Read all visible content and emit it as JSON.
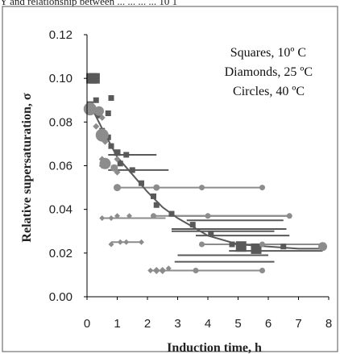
{
  "page": {
    "top_text": "Y and relationship between ... ... ... ... 10 1"
  },
  "chart_data": {
    "type": "scatter",
    "title": "",
    "xlabel": "Induction time, h",
    "ylabel": "Relative supersaturation, σ",
    "xlim": [
      0,
      8
    ],
    "ylim": [
      0.0,
      0.12
    ],
    "x_ticks": [
      "0",
      "1",
      "2",
      "3",
      "4",
      "5",
      "6",
      "7",
      "8"
    ],
    "y_ticks": [
      "0.00",
      "0.02",
      "0.04",
      "0.06",
      "0.08",
      "0.10",
      "0.12"
    ],
    "grid": false,
    "annotations": [
      "Squares, 10º C",
      "Diamonds, 25 ºC",
      "Circles, 40 ºC"
    ],
    "colors": {
      "squares": "#595959",
      "diamonds": "#8c8c8c",
      "circles": "#8c8c8c",
      "curve": "#5a5a5a",
      "axis": "#000000"
    },
    "series": [
      {
        "marker": "square",
        "points": [
          {
            "x": 0.15,
            "y": 0.1,
            "size": 13
          },
          {
            "x": 0.25,
            "y": 0.1,
            "size": 13
          },
          {
            "x": 0.1,
            "y": 0.088,
            "size": 8
          },
          {
            "x": 0.3,
            "y": 0.09,
            "size": 7
          },
          {
            "x": 0.8,
            "y": 0.091,
            "size": 7
          },
          {
            "x": 0.7,
            "y": 0.084,
            "size": 7
          },
          {
            "x": 0.4,
            "y": 0.083,
            "size": 7
          },
          {
            "x": 0.5,
            "y": 0.076,
            "size": 7
          },
          {
            "x": 0.7,
            "y": 0.073,
            "size": 7
          },
          {
            "x": 0.8,
            "y": 0.069,
            "size": 7
          },
          {
            "x": 1.0,
            "y": 0.066,
            "size": 8
          },
          {
            "x": 1.3,
            "y": 0.065,
            "size": 7
          },
          {
            "x": 1.1,
            "y": 0.061,
            "size": 7
          },
          {
            "x": 0.9,
            "y": 0.059,
            "size": 7
          },
          {
            "x": 1.5,
            "y": 0.058,
            "size": 7
          },
          {
            "x": 1.8,
            "y": 0.052,
            "size": 7
          },
          {
            "x": 2.2,
            "y": 0.046,
            "size": 7
          },
          {
            "x": 2.3,
            "y": 0.042,
            "size": 7
          },
          {
            "x": 2.8,
            "y": 0.038,
            "size": 7
          },
          {
            "x": 3.5,
            "y": 0.033,
            "size": 7
          },
          {
            "x": 4.1,
            "y": 0.029,
            "size": 7
          },
          {
            "x": 4.8,
            "y": 0.024,
            "size": 7
          },
          {
            "x": 5.1,
            "y": 0.023,
            "size": 13
          },
          {
            "x": 5.6,
            "y": 0.022,
            "size": 13
          },
          {
            "x": 6.5,
            "y": 0.023,
            "size": 7
          }
        ],
        "ranges": [
          {
            "x1": 0.7,
            "x2": 2.3,
            "y": 0.065
          },
          {
            "x1": 0.7,
            "x2": 2.7,
            "y": 0.058
          },
          {
            "x1": 2.7,
            "x2": 6.7,
            "y": 0.037
          },
          {
            "x1": 3.3,
            "x2": 6.5,
            "y": 0.035
          },
          {
            "x1": 2.8,
            "x2": 6.6,
            "y": 0.031
          },
          {
            "x1": 2.8,
            "x2": 6.2,
            "y": 0.03
          },
          {
            "x1": 3.6,
            "x2": 6.7,
            "y": 0.028
          },
          {
            "x1": 4.7,
            "x2": 7.8,
            "y": 0.021
          },
          {
            "x1": 2.9,
            "x2": 6.2,
            "y": 0.016
          },
          {
            "x1": 3.0,
            "x2": 6.0,
            "y": 0.019
          }
        ]
      },
      {
        "marker": "diamond",
        "points": [
          {
            "x": 0.2,
            "y": 0.086,
            "size": 9
          },
          {
            "x": 0.5,
            "y": 0.082,
            "size": 8
          },
          {
            "x": 0.3,
            "y": 0.078,
            "size": 8
          },
          {
            "x": 0.6,
            "y": 0.071,
            "size": 8
          },
          {
            "x": 0.5,
            "y": 0.063,
            "size": 8
          },
          {
            "x": 1.0,
            "y": 0.063,
            "size": 8
          },
          {
            "x": 0.5,
            "y": 0.06,
            "size": 8
          },
          {
            "x": 1.0,
            "y": 0.057,
            "size": 8
          },
          {
            "x": 0.5,
            "y": 0.036,
            "size": 7
          },
          {
            "x": 0.8,
            "y": 0.036,
            "size": 7
          },
          {
            "x": 1.0,
            "y": 0.037,
            "size": 7
          },
          {
            "x": 1.4,
            "y": 0.037,
            "size": 7
          },
          {
            "x": 0.8,
            "y": 0.024,
            "size": 7
          },
          {
            "x": 1.1,
            "y": 0.025,
            "size": 7
          },
          {
            "x": 1.3,
            "y": 0.025,
            "size": 7
          },
          {
            "x": 1.8,
            "y": 0.025,
            "size": 7
          },
          {
            "x": 2.1,
            "y": 0.012,
            "size": 7
          },
          {
            "x": 2.3,
            "y": 0.012,
            "size": 9
          },
          {
            "x": 2.5,
            "y": 0.012,
            "size": 9
          },
          {
            "x": 2.7,
            "y": 0.013,
            "size": 7
          }
        ],
        "ranges": [
          {
            "x1": 0.5,
            "x2": 2.6,
            "y": 0.036
          },
          {
            "x1": 0.8,
            "x2": 1.8,
            "y": 0.025
          },
          {
            "x1": 2.1,
            "x2": 2.7,
            "y": 0.012
          }
        ]
      },
      {
        "marker": "circle",
        "points": [
          {
            "x": 0.1,
            "y": 0.086,
            "size": 16
          },
          {
            "x": 0.4,
            "y": 0.085,
            "size": 12
          },
          {
            "x": 0.5,
            "y": 0.074,
            "size": 16
          },
          {
            "x": 0.6,
            "y": 0.061,
            "size": 14
          },
          {
            "x": 0.9,
            "y": 0.059,
            "size": 9
          },
          {
            "x": 1.0,
            "y": 0.05,
            "size": 9
          },
          {
            "x": 2.3,
            "y": 0.05,
            "size": 8
          },
          {
            "x": 3.8,
            "y": 0.05,
            "size": 7
          },
          {
            "x": 5.8,
            "y": 0.05,
            "size": 7
          },
          {
            "x": 2.2,
            "y": 0.037,
            "size": 7
          },
          {
            "x": 4.0,
            "y": 0.037,
            "size": 7
          },
          {
            "x": 6.7,
            "y": 0.037,
            "size": 7
          },
          {
            "x": 3.8,
            "y": 0.024,
            "size": 7
          },
          {
            "x": 5.8,
            "y": 0.024,
            "size": 7
          },
          {
            "x": 7.8,
            "y": 0.023,
            "size": 11
          },
          {
            "x": 3.6,
            "y": 0.012,
            "size": 7
          },
          {
            "x": 5.8,
            "y": 0.012,
            "size": 7
          }
        ],
        "ranges": [
          {
            "x1": 0.9,
            "x2": 5.8,
            "y": 0.05
          },
          {
            "x1": 2.2,
            "x2": 6.7,
            "y": 0.037
          },
          {
            "x1": 3.8,
            "x2": 7.8,
            "y": 0.024
          },
          {
            "x1": 2.7,
            "x2": 5.8,
            "y": 0.012
          }
        ]
      }
    ],
    "trend_curve": [
      {
        "x": 0.1,
        "y": 0.088
      },
      {
        "x": 0.5,
        "y": 0.077
      },
      {
        "x": 1.0,
        "y": 0.064
      },
      {
        "x": 1.5,
        "y": 0.056
      },
      {
        "x": 2.0,
        "y": 0.048
      },
      {
        "x": 2.5,
        "y": 0.041
      },
      {
        "x": 3.0,
        "y": 0.036
      },
      {
        "x": 3.5,
        "y": 0.032
      },
      {
        "x": 4.0,
        "y": 0.028
      },
      {
        "x": 5.0,
        "y": 0.024
      },
      {
        "x": 6.0,
        "y": 0.023
      },
      {
        "x": 7.0,
        "y": 0.022
      },
      {
        "x": 7.9,
        "y": 0.022
      }
    ]
  }
}
